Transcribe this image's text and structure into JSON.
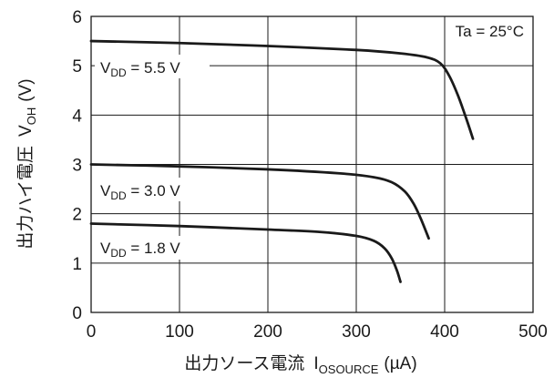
{
  "chart_data": {
    "type": "line",
    "xlabel": "出力ソース電流 IOSOURCE (µA)",
    "xlabel_parts": {
      "main": "出力ソース電流",
      "sym": "I",
      "sub": "OSOURCE",
      "unit": "(µA)"
    },
    "ylabel": "出力ハイ電圧 VOH (V)",
    "ylabel_parts": {
      "main": "出力ハイ電圧",
      "sym": "V",
      "sub": "OH",
      "unit": "(V)"
    },
    "xlim": [
      0,
      500
    ],
    "ylim": [
      0,
      6
    ],
    "x_ticks": [
      "0",
      "100",
      "200",
      "300",
      "400",
      "500"
    ],
    "y_ticks": [
      "0",
      "1",
      "2",
      "3",
      "4",
      "5",
      "6"
    ],
    "grid": true,
    "annotation": "Ta = 25°C",
    "series": [
      {
        "name": "VDD = 5.5 V",
        "label_parts": {
          "sym": "V",
          "sub": "DD",
          "rest": " = 5.5 V"
        },
        "x": [
          0,
          100,
          200,
          300,
          350,
          380,
          395,
          405,
          415,
          425,
          432
        ],
        "y": [
          5.5,
          5.46,
          5.4,
          5.32,
          5.25,
          5.17,
          5.05,
          4.8,
          4.4,
          3.9,
          3.52
        ]
      },
      {
        "name": "VDD = 3.0 V",
        "label_parts": {
          "sym": "V",
          "sub": "DD",
          "rest": " = 3.0 V"
        },
        "x": [
          0,
          100,
          200,
          280,
          320,
          340,
          355,
          365,
          373,
          382
        ],
        "y": [
          3.0,
          2.96,
          2.9,
          2.82,
          2.74,
          2.64,
          2.45,
          2.2,
          1.9,
          1.5
        ]
      },
      {
        "name": "VDD = 1.8 V",
        "label_parts": {
          "sym": "V",
          "sub": "DD",
          "rest": " = 1.8 V"
        },
        "x": [
          0,
          100,
          200,
          260,
          300,
          320,
          332,
          340,
          346,
          350
        ],
        "y": [
          1.8,
          1.75,
          1.68,
          1.63,
          1.55,
          1.45,
          1.3,
          1.1,
          0.85,
          0.62
        ]
      }
    ]
  }
}
